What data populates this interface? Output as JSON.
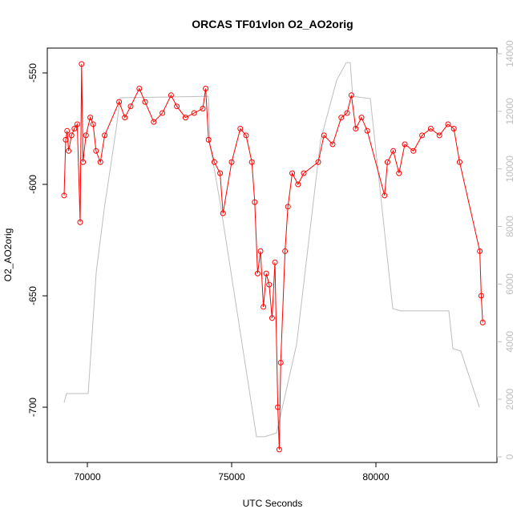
{
  "chart_data": {
    "type": "line",
    "title": "ORCAS TF01vlon O2_AO2orig",
    "x_label": "UTC Seconds",
    "y_label": "O2_AO2orig",
    "xlim": [
      68611,
      84194
    ],
    "xticks": [
      70000,
      75000,
      80000
    ],
    "ylim": [
      -724.8,
      -538.85
    ],
    "yticks": [
      -550,
      -600,
      -650,
      -700
    ],
    "y2lim": [
      -195,
      14195
    ],
    "y2ticks": [
      0,
      2000,
      4000,
      6000,
      8000,
      10000,
      12000,
      14000
    ],
    "series": [
      {
        "color": "#ff0000",
        "markers": true,
        "x": [
          69194,
          69250,
          69300,
          69350,
          69450,
          69550,
          69650,
          69750,
          69800,
          69850,
          69950,
          70100,
          70200,
          70300,
          70450,
          70600,
          71100,
          71300,
          71500,
          71800,
          72000,
          72300,
          72600,
          72900,
          73100,
          73400,
          73700,
          74000,
          74100,
          74200,
          74400,
          74600,
          74700,
          75000,
          75300,
          75500,
          75700,
          75800,
          75900,
          76000,
          76100,
          76200,
          76300,
          76400,
          76500,
          76600,
          76650,
          76700,
          76850,
          76950,
          77100,
          77300,
          77500,
          78000,
          78200,
          78500,
          78800,
          79000,
          79150,
          79300,
          79500,
          79700,
          80300,
          80400,
          80600,
          80800,
          81000,
          81300,
          81600,
          81900,
          82200,
          82500,
          82700,
          82900,
          83600,
          83650,
          83700
        ],
        "values": [
          -605,
          -580,
          -576,
          -585,
          -578,
          -575,
          -573,
          -617,
          -546,
          -590,
          -578,
          -570,
          -573,
          -585,
          -590,
          -578,
          -563,
          -570,
          -565,
          -557,
          -563,
          -572,
          -568,
          -560,
          -565,
          -570,
          -568,
          -566,
          -557,
          -580,
          -590,
          -595,
          -613,
          -590,
          -575,
          -578,
          -590,
          -608,
          -640,
          -630,
          -655,
          -640,
          -645,
          -660,
          -635,
          -700,
          -719,
          -680,
          -630,
          -610,
          -595,
          -600,
          -595,
          -590,
          -578,
          -582,
          -570,
          -568,
          -560,
          -575,
          -570,
          -576,
          -605,
          -590,
          -585,
          -595,
          -582,
          -585,
          -578,
          -575,
          -578,
          -573,
          -575,
          -590,
          -630,
          -650,
          -662
        ]
      },
      {
        "color": "#bebebe",
        "axis": "y2",
        "x": [
          69194,
          69278,
          70028,
          70306,
          70583,
          71000,
          71139,
          74194,
          74250,
          74611,
          75861,
          76139,
          76556,
          77250,
          78083,
          78639,
          78972,
          79111,
          79194,
          79806,
          80583,
          80861,
          82528,
          82667,
          82944,
          83583
        ],
        "values": [
          1890,
          2200,
          2200,
          6400,
          8600,
          11400,
          12470,
          12520,
          10850,
          8770,
          700,
          700,
          830,
          3900,
          11000,
          13080,
          13690,
          13690,
          12520,
          12440,
          5150,
          5070,
          5070,
          3760,
          3670,
          1730
        ]
      }
    ]
  }
}
